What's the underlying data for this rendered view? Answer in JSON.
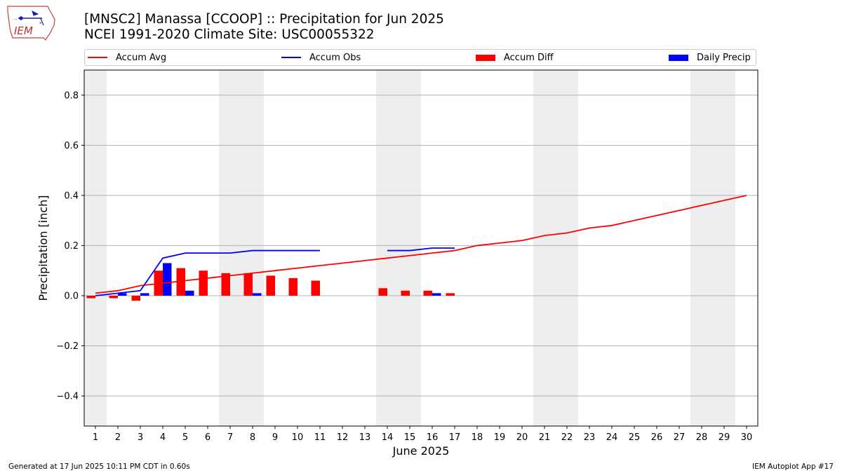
{
  "logo": {
    "text": "IEM"
  },
  "header": {
    "title_line1": "[MNSC2] Manassa [CCOOP] :: Precipitation for Jun 2025",
    "title_line2": "NCEI 1991-2020 Climate Site: USC00055322"
  },
  "footer": {
    "left": "Generated at 17 Jun 2025 10:11 PM CDT in 0.60s",
    "right": "IEM Autoplot App #17"
  },
  "chart_data": {
    "type": "bar",
    "xlabel": "June 2025",
    "ylabel": "Precipitation [inch]",
    "ylim": [
      -0.52,
      0.9
    ],
    "yticks": [
      -0.4,
      -0.2,
      0.0,
      0.2,
      0.4,
      0.6,
      0.8
    ],
    "ytick_labels": [
      "−0.4",
      "−0.2",
      "0.0",
      "0.2",
      "0.4",
      "0.6",
      "0.8"
    ],
    "xlim": [
      0.5,
      30.5
    ],
    "days": [
      1,
      2,
      3,
      4,
      5,
      6,
      7,
      8,
      9,
      10,
      11,
      12,
      13,
      14,
      15,
      16,
      17,
      18,
      19,
      20,
      21,
      22,
      23,
      24,
      25,
      26,
      27,
      28,
      29,
      30
    ],
    "grid": "horizontal",
    "legend_placement": "top, above plot",
    "weekend_shading": [
      [
        0.5,
        1.5
      ],
      [
        6.5,
        8.5
      ],
      [
        13.5,
        15.5
      ],
      [
        20.5,
        22.5
      ],
      [
        27.5,
        29.5
      ]
    ],
    "colors": {
      "avg": "#ff0000",
      "obs": "#0000ff",
      "diff": "#ff0000",
      "daily": "#0000ff",
      "shade": "#eeeeee",
      "grid": "#b0b0b0"
    },
    "series": [
      {
        "name": "Accum Avg",
        "kind": "line",
        "x": [
          1,
          2,
          3,
          4,
          5,
          6,
          7,
          8,
          9,
          10,
          11,
          12,
          13,
          14,
          15,
          16,
          17,
          18,
          19,
          20,
          21,
          22,
          23,
          24,
          25,
          26,
          27,
          28,
          29,
          30
        ],
        "values": [
          0.01,
          0.02,
          0.04,
          0.05,
          0.06,
          0.07,
          0.08,
          0.09,
          0.1,
          0.11,
          0.12,
          0.13,
          0.14,
          0.15,
          0.16,
          0.17,
          0.18,
          0.2,
          0.21,
          0.22,
          0.24,
          0.25,
          0.27,
          0.28,
          0.3,
          0.32,
          0.34,
          0.36,
          0.38,
          0.4
        ]
      },
      {
        "name": "Accum Obs",
        "kind": "line",
        "segments": [
          {
            "x": [
              1,
              2,
              3,
              4,
              5,
              6,
              7,
              8,
              9,
              10,
              11
            ],
            "values": [
              0.0,
              0.01,
              0.02,
              0.15,
              0.17,
              0.17,
              0.17,
              0.18,
              0.18,
              0.18,
              0.18
            ]
          },
          {
            "x": [
              14,
              15,
              16,
              17
            ],
            "values": [
              0.18,
              0.18,
              0.19,
              0.19
            ]
          }
        ]
      },
      {
        "name": "Accum Diff",
        "kind": "bar",
        "x": [
          1,
          2,
          3,
          4,
          5,
          6,
          7,
          8,
          9,
          10,
          11,
          14,
          15,
          16,
          17
        ],
        "values": [
          -0.01,
          -0.01,
          -0.02,
          0.1,
          0.11,
          0.1,
          0.09,
          0.09,
          0.08,
          0.07,
          0.06,
          0.03,
          0.02,
          0.02,
          0.01
        ]
      },
      {
        "name": "Daily Precip",
        "kind": "bar",
        "x": [
          2,
          3,
          4,
          5,
          8,
          16
        ],
        "values": [
          0.01,
          0.01,
          0.13,
          0.02,
          0.01,
          0.01
        ]
      }
    ]
  }
}
